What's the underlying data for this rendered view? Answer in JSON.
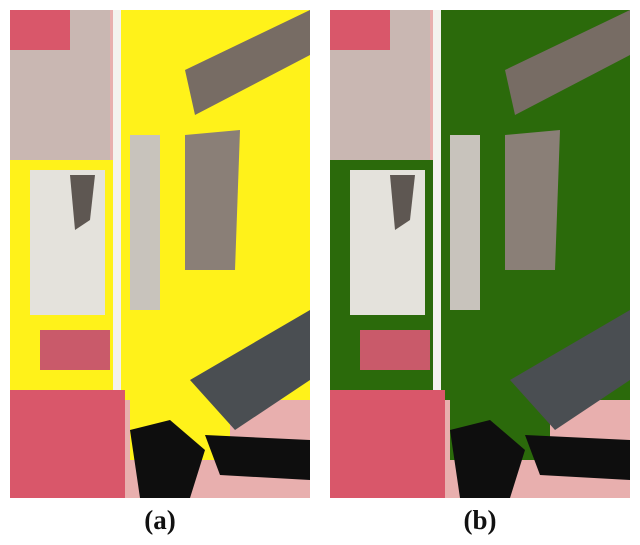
{
  "panels": [
    {
      "label": "(a)",
      "overlay_color": "#FFF21A"
    },
    {
      "label": "(b)",
      "overlay_color": "#2B6A0B"
    }
  ],
  "palette": {
    "pink_field": "#E8AFAE",
    "red_vegetation": "#D9576A",
    "bright_field": "#E4E2DC",
    "brown_field": "#8A7F77",
    "dark_shadow": "#0E0E0E",
    "road": "#F4F2EE"
  }
}
